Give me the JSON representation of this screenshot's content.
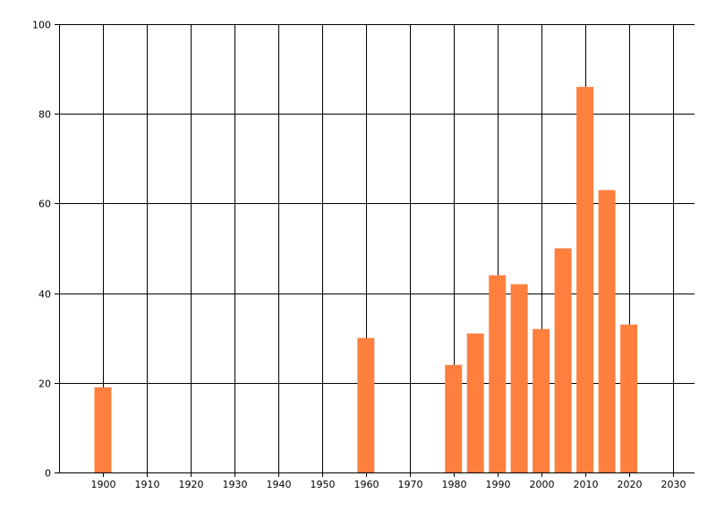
{
  "chart_data": {
    "type": "bar",
    "title": "",
    "xlabel": "",
    "ylabel": "",
    "x": [
      1900,
      1960,
      1980,
      1985,
      1990,
      1995,
      2000,
      2005,
      2010,
      2015,
      2020
    ],
    "values": [
      19,
      30,
      24,
      31,
      44,
      42,
      32,
      50,
      86,
      63,
      33
    ],
    "xlim": [
      1890,
      2035
    ],
    "ylim": [
      0,
      100
    ],
    "x_ticks": [
      1900,
      1910,
      1920,
      1930,
      1940,
      1950,
      1960,
      1970,
      1980,
      1990,
      2000,
      2010,
      2020,
      2030
    ],
    "y_ticks": [
      0,
      20,
      40,
      60,
      80,
      100
    ],
    "grid": true,
    "legend": "none",
    "bar_color": "#ff7f3f",
    "grid_color": "#000000"
  }
}
